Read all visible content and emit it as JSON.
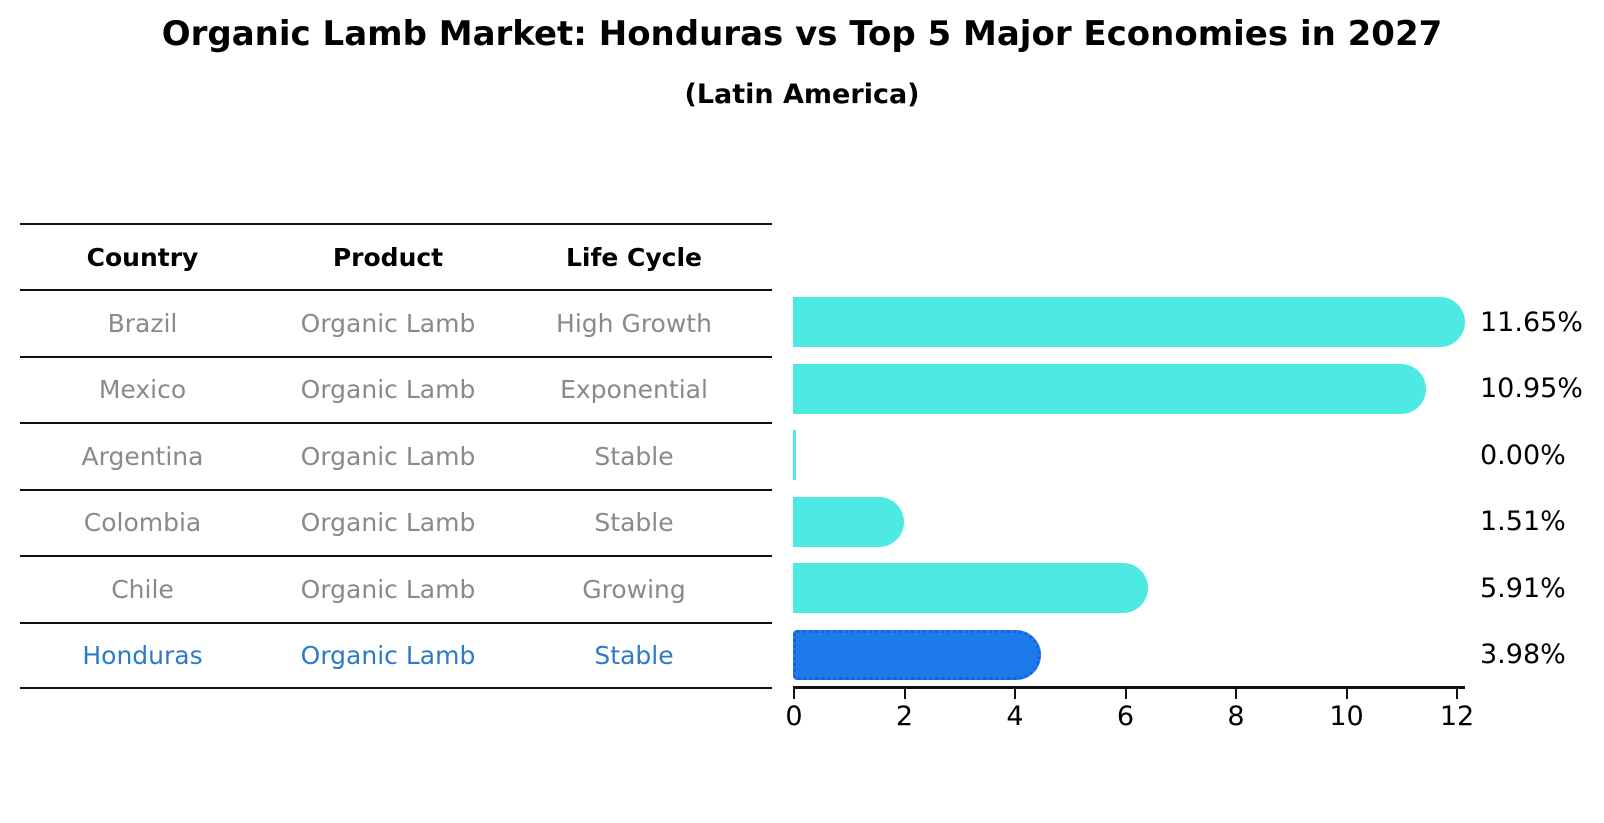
{
  "title": "Organic Lamb Market: Honduras vs Top 5 Major Economies in 2027",
  "subtitle": "(Latin America)",
  "table": {
    "headers": [
      "Country",
      "Product",
      "Life Cycle"
    ],
    "rows": [
      {
        "country": "Brazil",
        "product": "Organic Lamb",
        "life_cycle": "High Growth",
        "highlighted": false
      },
      {
        "country": "Mexico",
        "product": "Organic Lamb",
        "life_cycle": "Exponential",
        "highlighted": false
      },
      {
        "country": "Argentina",
        "product": "Organic Lamb",
        "life_cycle": "Stable",
        "highlighted": false
      },
      {
        "country": "Colombia",
        "product": "Organic Lamb",
        "life_cycle": "Stable",
        "highlighted": false
      },
      {
        "country": "Chile",
        "product": "Organic Lamb",
        "life_cycle": "Growing",
        "highlighted": false
      },
      {
        "country": "Honduras",
        "product": "Organic Lamb",
        "life_cycle": "Stable",
        "highlighted": true
      }
    ]
  },
  "chart_data": {
    "type": "bar",
    "orientation": "horizontal",
    "title": "Organic Lamb Market: Honduras vs Top 5 Major Economies in 2027",
    "subtitle": "(Latin America)",
    "categories": [
      "Brazil",
      "Mexico",
      "Argentina",
      "Colombia",
      "Chile",
      "Honduras"
    ],
    "values": [
      11.65,
      10.95,
      0.0,
      1.51,
      5.91,
      3.98
    ],
    "value_labels": [
      "11.65%",
      "10.95%",
      "0.00%",
      "1.51%",
      "5.91%",
      "3.98%"
    ],
    "xlim": [
      0,
      12
    ],
    "xticks": [
      "0",
      "2",
      "4",
      "6",
      "8",
      "10",
      "12"
    ],
    "grid": false,
    "legend_position": "none",
    "highlight_index": 5
  },
  "colors": {
    "bar_default": "#4DE9E3",
    "bar_highlight": "#1E7AEB",
    "bar_highlight_border": "#1266d9",
    "row_text": "#8A8A8A",
    "highlight_row_text": "#2D7AC9",
    "axis_and_lines": "#111111",
    "label_text": "#000000"
  }
}
